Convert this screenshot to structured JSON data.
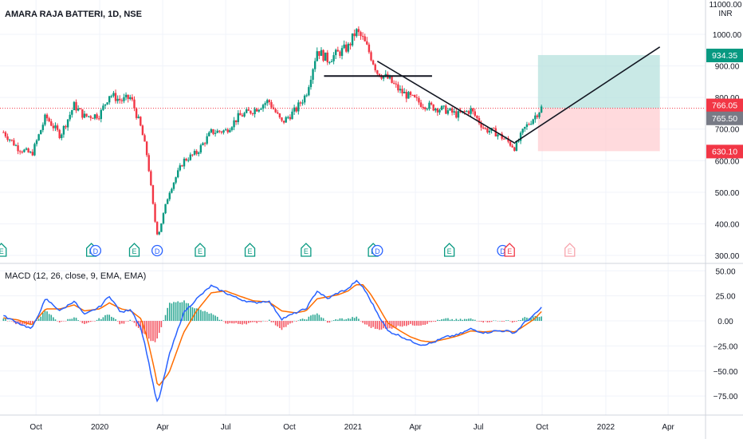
{
  "header": {
    "symbol_title": "AMARA RAJA BATTERI, 1D, NSE",
    "currency_line1": "11000.00",
    "currency_line2": "INR"
  },
  "price_axis": {
    "ticks": [
      "1000.00",
      "900.00",
      "800.00",
      "700.00",
      "600.00",
      "500.00",
      "400.00",
      "300.00"
    ],
    "tick_values": [
      1000,
      900,
      800,
      700,
      600,
      500,
      400,
      300
    ],
    "badges": [
      {
        "label": "934.35",
        "value": 934.35,
        "color": "#089981"
      },
      {
        "label": "766.05",
        "value": 766.05,
        "color": "#f23645"
      },
      {
        "label": "765.50",
        "value": 765.5,
        "color": "#787b86"
      },
      {
        "label": "630.10",
        "value": 630.1,
        "color": "#f23645"
      }
    ]
  },
  "macd": {
    "legend": "MACD (12, 26, close, 9, EMA, EMA)",
    "ticks": [
      "50.00",
      "25.00",
      "0.00",
      "−25.00",
      "−50.00",
      "−75.00"
    ],
    "tick_values": [
      50,
      25,
      0,
      -25,
      -50,
      -75
    ]
  },
  "time_axis": {
    "labels": [
      "Oct",
      "2020",
      "Apr",
      "Jul",
      "Oct",
      "2021",
      "Apr",
      "Jul",
      "Oct",
      "2022",
      "Apr"
    ]
  },
  "events": [
    "E",
    "E",
    "D",
    "E",
    "D",
    "E",
    "E",
    "E",
    "E",
    "D",
    "E",
    "D",
    "E",
    "E"
  ],
  "colors": {
    "up": "#089981",
    "down": "#f23645",
    "macd_line": "#2962ff",
    "signal_line": "#ff6d00",
    "target_zone": "#b2dfdb",
    "stop_zone": "#ffcdd2"
  },
  "chart_data": [
    {
      "type": "candlestick",
      "title": "AMARA RAJA BATTERI, 1D, NSE",
      "xlabel": "",
      "ylabel": "",
      "x_range": [
        "2019-08-10",
        "2022-05-25"
      ],
      "ylim": [
        300,
        1100
      ],
      "series": [
        {
          "x": [
            "2019-08-15",
            "2019-09-05",
            "2019-09-25",
            "2019-10-15",
            "2019-11-05",
            "2019-11-25",
            "2019-12-10",
            "2020-01-01",
            "2020-01-15",
            "2020-02-01",
            "2020-02-15",
            "2020-03-01",
            "2020-03-10",
            "2020-03-20",
            "2020-03-25",
            "2020-04-10",
            "2020-05-01",
            "2020-05-20",
            "2020-06-10",
            "2020-07-01",
            "2020-07-20",
            "2020-08-10",
            "2020-09-01",
            "2020-09-20",
            "2020-10-10",
            "2020-10-25",
            "2020-11-10",
            "2020-11-25",
            "2020-12-10",
            "2020-12-25",
            "2021-01-05",
            "2021-01-15",
            "2021-01-25",
            "2021-02-05",
            "2021-02-20",
            "2021-03-10",
            "2021-03-25",
            "2021-04-10",
            "2021-04-25",
            "2021-05-15",
            "2021-06-01",
            "2021-06-20",
            "2021-07-10",
            "2021-07-25",
            "2021-08-10",
            "2021-08-23",
            "2021-09-05",
            "2021-09-20",
            "2021-10-01"
          ],
          "close": [
            690,
            640,
            620,
            740,
            680,
            775,
            740,
            745,
            810,
            790,
            800,
            700,
            610,
            420,
            360,
            500,
            600,
            625,
            690,
            695,
            740,
            760,
            790,
            720,
            760,
            810,
            950,
            920,
            940,
            960,
            1010,
            985,
            940,
            880,
            860,
            820,
            800,
            780,
            770,
            760,
            745,
            760,
            700,
            690,
            665,
            640,
            700,
            740,
            770
          ]
        }
      ],
      "annotations": {
        "horizontal_line": {
          "value": 868,
          "from": "2020-11-20",
          "to": "2021-04-25"
        },
        "trendline": {
          "points": [
            [
              "2021-02-05",
              915
            ],
            [
              "2021-08-23",
              655
            ]
          ]
        },
        "projection_line": {
          "points": [
            [
              "2021-08-23",
              658
            ],
            [
              "2022-03-20",
              960
            ]
          ]
        },
        "long_position": {
          "start": "2021-09-25",
          "end": "2022-03-20",
          "entry": 766.05,
          "target": 934.35,
          "stop": 630.1
        },
        "last_price_line": 766.05
      }
    },
    {
      "type": "line",
      "title": "MACD (12, 26, close, 9, EMA, EMA)",
      "xlabel": "",
      "ylabel": "",
      "ylim": [
        -90,
        55
      ],
      "x": [
        "2019-08-15",
        "2019-09-05",
        "2019-09-25",
        "2019-10-15",
        "2019-11-05",
        "2019-11-25",
        "2019-12-10",
        "2020-01-01",
        "2020-01-15",
        "2020-02-01",
        "2020-02-15",
        "2020-03-01",
        "2020-03-10",
        "2020-03-20",
        "2020-03-25",
        "2020-04-10",
        "2020-05-01",
        "2020-05-20",
        "2020-06-10",
        "2020-07-01",
        "2020-07-20",
        "2020-08-10",
        "2020-09-01",
        "2020-09-20",
        "2020-10-10",
        "2020-10-25",
        "2020-11-10",
        "2020-11-25",
        "2020-12-10",
        "2020-12-25",
        "2021-01-05",
        "2021-01-15",
        "2021-01-25",
        "2021-02-05",
        "2021-02-20",
        "2021-03-10",
        "2021-03-25",
        "2021-04-10",
        "2021-04-25",
        "2021-05-15",
        "2021-06-01",
        "2021-06-20",
        "2021-07-10",
        "2021-07-25",
        "2021-08-10",
        "2021-08-23",
        "2021-09-05",
        "2021-09-20",
        "2021-10-01"
      ],
      "series": [
        {
          "name": "MACD",
          "values": [
            5,
            -2,
            -8,
            22,
            10,
            20,
            6,
            14,
            25,
            8,
            12,
            -8,
            -35,
            -70,
            -83,
            -35,
            8,
            22,
            35,
            28,
            22,
            18,
            20,
            2,
            8,
            12,
            30,
            22,
            28,
            32,
            40,
            34,
            22,
            8,
            -10,
            -15,
            -20,
            -24,
            -22,
            -16,
            -14,
            -8,
            -12,
            -10,
            -10,
            -12,
            -2,
            6,
            14
          ]
        },
        {
          "name": "Signal",
          "values": [
            3,
            1,
            -4,
            12,
            12,
            16,
            10,
            12,
            18,
            12,
            10,
            2,
            -18,
            -48,
            -66,
            -52,
            -12,
            10,
            28,
            30,
            25,
            20,
            19,
            10,
            8,
            10,
            22,
            24,
            26,
            30,
            36,
            36,
            28,
            16,
            -2,
            -10,
            -16,
            -20,
            -21,
            -18,
            -15,
            -10,
            -11,
            -10,
            -10,
            -11,
            -5,
            2,
            10
          ]
        },
        {
          "name": "Histogram",
          "values": [
            2,
            -3,
            -4,
            10,
            -2,
            4,
            -4,
            2,
            7,
            -4,
            2,
            -10,
            -17,
            -22,
            -17,
            17,
            20,
            12,
            7,
            -2,
            -3,
            -2,
            1,
            -8,
            0,
            2,
            8,
            -2,
            2,
            2,
            4,
            -2,
            -6,
            -8,
            -8,
            -5,
            -4,
            -4,
            -1,
            2,
            1,
            2,
            -1,
            0,
            0,
            -1,
            3,
            4,
            4
          ]
        }
      ]
    }
  ]
}
